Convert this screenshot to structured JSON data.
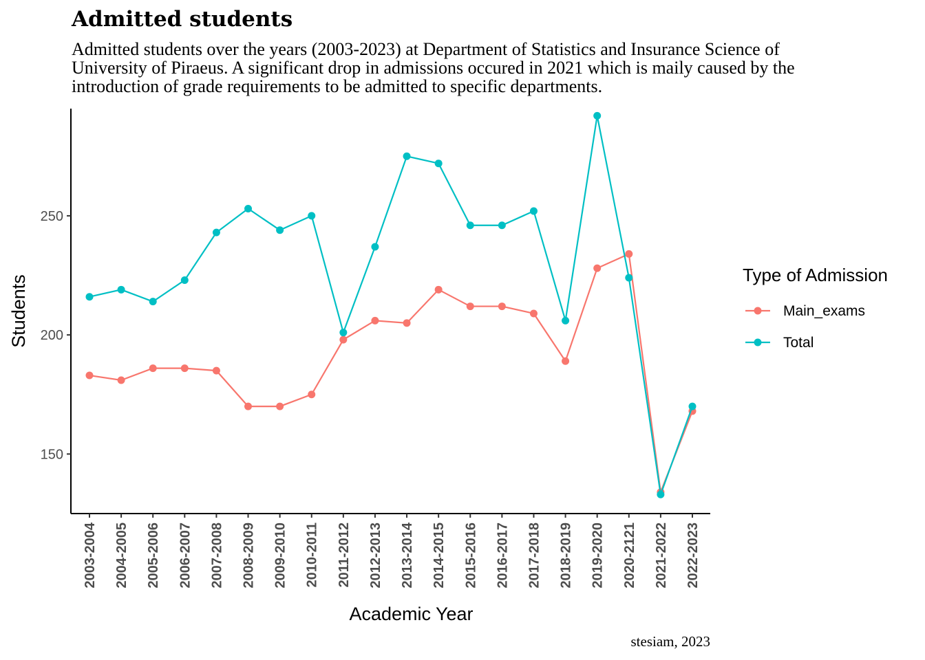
{
  "chart_data": {
    "type": "line",
    "title": "Admitted students",
    "subtitle_lines": [
      "Admitted students over the years (2003-2023) at Department of Statistics and Insurance Science of",
      "University of Piraeus. A significant drop in admissions occured in 2021 which is maily caused by the",
      "introduction of grade requirements to be admitted to specific departments."
    ],
    "caption": "stesiam, 2023",
    "xlabel": "Academic Year",
    "ylabel": "Students",
    "categories": [
      "2003-2004",
      "2004-2005",
      "2005-2006",
      "2006-2007",
      "2007-2008",
      "2008-2009",
      "2009-2010",
      "2010-2011",
      "2011-2012",
      "2012-2013",
      "2013-2014",
      "2014-2015",
      "2015-2016",
      "2016-2017",
      "2017-2018",
      "2018-2019",
      "2019-2020",
      "2020-2121",
      "2021-2022",
      "2022-2023"
    ],
    "ylim": [
      125,
      295
    ],
    "yticks": [
      150,
      200,
      250
    ],
    "grid": false,
    "legend_title": "Type of Admission",
    "legend_position": "right",
    "series": [
      {
        "name": "Main_exams",
        "color": "#F8766D",
        "values": [
          183,
          181,
          186,
          186,
          185,
          170,
          170,
          175,
          198,
          206,
          205,
          219,
          212,
          212,
          209,
          189,
          228,
          234,
          134,
          168
        ]
      },
      {
        "name": "Total",
        "color": "#00BFC4",
        "values": [
          216,
          219,
          214,
          223,
          243,
          253,
          244,
          250,
          201,
          237,
          275,
          272,
          246,
          246,
          252,
          206,
          292,
          224,
          133,
          170
        ]
      }
    ]
  }
}
